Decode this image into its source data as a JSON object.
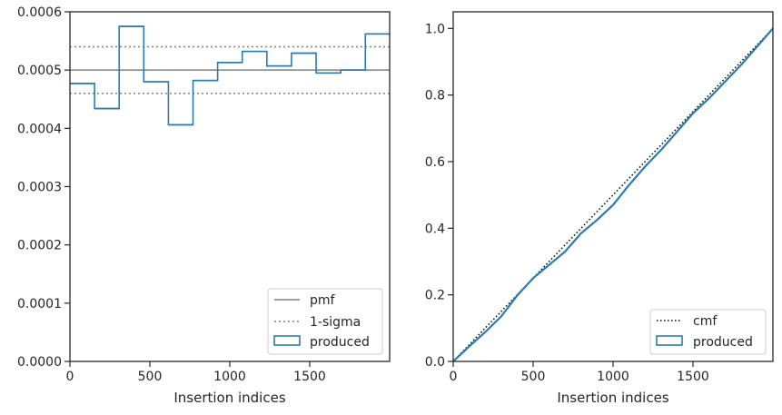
{
  "chart_data": [
    {
      "type": "line",
      "xlabel": "Insertion indices",
      "ylabel": "",
      "xlim": [
        0,
        2000
      ],
      "ylim": [
        0,
        0.0006
      ],
      "x_ticks": [
        0,
        500,
        1000,
        1500
      ],
      "x_tick_labels": [
        "0",
        "500",
        "1000",
        "1500"
      ],
      "y_ticks": [
        0,
        0.0001,
        0.0002,
        0.0003,
        0.0004,
        0.0005,
        0.0006
      ],
      "y_tick_labels": [
        "0.0000",
        "0.0001",
        "0.0002",
        "0.0003",
        "0.0004",
        "0.0005",
        "0.0006"
      ],
      "grid": false,
      "legend_position": "lower right",
      "pmf": {
        "name": "pmf",
        "value": 0.0005,
        "color": "#808080"
      },
      "sigma": {
        "name": "1-sigma",
        "values": [
          0.00046,
          0.00054
        ],
        "color": "#808080"
      },
      "histogram": {
        "name": "produced",
        "color": "#2c7bb0",
        "bin_edges": [
          0,
          154,
          308,
          462,
          616,
          770,
          924,
          1078,
          1232,
          1386,
          1540,
          1694,
          1848,
          2000
        ],
        "values": [
          0.000477,
          0.000434,
          0.000575,
          0.00048,
          0.000406,
          0.000482,
          0.000513,
          0.000532,
          0.000507,
          0.000529,
          0.000495,
          0.0005,
          0.000562
        ]
      }
    },
    {
      "type": "line",
      "xlabel": "Insertion indices",
      "ylabel": "",
      "xlim": [
        0,
        2000
      ],
      "ylim": [
        0,
        1.05
      ],
      "x_ticks": [
        0,
        500,
        1000,
        1500
      ],
      "x_tick_labels": [
        "0",
        "500",
        "1000",
        "1500"
      ],
      "y_ticks": [
        0,
        0.2,
        0.4,
        0.6,
        0.8,
        1.0
      ],
      "y_tick_labels": [
        "0.0",
        "0.2",
        "0.4",
        "0.6",
        "0.8",
        "1.0"
      ],
      "grid": false,
      "legend_position": "lower right",
      "cmf": {
        "name": "cmf",
        "x": [
          0,
          2000
        ],
        "y": [
          0,
          1.0
        ],
        "color": "#000000"
      },
      "produced": {
        "name": "produced",
        "color": "#2c7bb0",
        "x": [
          0,
          100,
          200,
          300,
          400,
          500,
          600,
          700,
          800,
          900,
          1000,
          1100,
          1200,
          1300,
          1400,
          1500,
          1600,
          1700,
          1800,
          1900,
          2000
        ],
        "y": [
          0,
          0.045,
          0.088,
          0.135,
          0.198,
          0.25,
          0.29,
          0.33,
          0.385,
          0.425,
          0.47,
          0.53,
          0.585,
          0.635,
          0.69,
          0.745,
          0.79,
          0.84,
          0.89,
          0.945,
          1.0
        ]
      }
    }
  ]
}
